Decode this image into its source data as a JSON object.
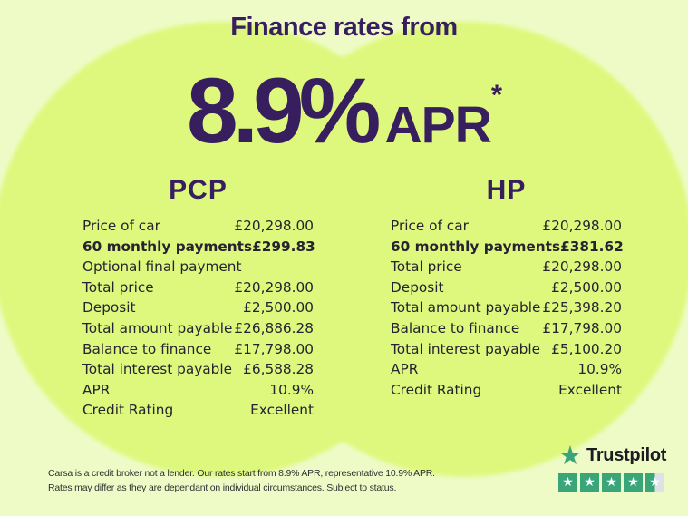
{
  "colors": {
    "background": "#effbc7",
    "circle": "#def87e",
    "heading_purple": "#371e5e",
    "table_text": "#262230",
    "trustpilot_green": "#3aa578",
    "trustpilot_gray": "#dfe0e8",
    "trustpilot_text": "#1b1b21"
  },
  "header": {
    "title": "Finance rates from",
    "rate": "8.9%",
    "apr_label": "APR",
    "apr_asterisk": "*"
  },
  "pcp": {
    "title": "PCP",
    "rows": [
      {
        "label": "Price of car",
        "value": "£20,298.00",
        "bold": false
      },
      {
        "label": "60 monthly payments",
        "value": "£299.83",
        "bold": true
      },
      {
        "label": "Optional final payment",
        "value": "",
        "bold": false
      },
      {
        "label": "Total price",
        "value": "£20,298.00",
        "bold": false
      },
      {
        "label": "Deposit",
        "value": "£2,500.00",
        "bold": false
      },
      {
        "label": "Total amount payable",
        "value": "£26,886.28",
        "bold": false
      },
      {
        "label": "Balance to finance",
        "value": "£17,798.00",
        "bold": false
      },
      {
        "label": "Total interest payable",
        "value": "£6,588.28",
        "bold": false
      },
      {
        "label": "APR",
        "value": "10.9%",
        "bold": false
      },
      {
        "label": "Credit Rating",
        "value": "Excellent",
        "bold": false
      }
    ]
  },
  "hp": {
    "title": "HP",
    "rows": [
      {
        "label": "Price of car",
        "value": "£20,298.00",
        "bold": false
      },
      {
        "label": "60 monthly payments",
        "value": "£381.62",
        "bold": true
      },
      {
        "label": "Total price",
        "value": "£20,298.00",
        "bold": false
      },
      {
        "label": "Deposit",
        "value": "£2,500.00",
        "bold": false
      },
      {
        "label": "Total amount payable",
        "value": "£25,398.20",
        "bold": false
      },
      {
        "label": "Balance to finance",
        "value": "£17,798.00",
        "bold": false
      },
      {
        "label": "Total interest payable",
        "value": "£5,100.20",
        "bold": false
      },
      {
        "label": "APR",
        "value": "10.9%",
        "bold": false
      },
      {
        "label": "Credit Rating",
        "value": "Excellent",
        "bold": false
      }
    ]
  },
  "disclaimer": {
    "line1": "Carsa is a credit broker not a lender. Our rates start from 8.9% APR, representative 10.9% APR.",
    "line2": "Rates may differ as they are dependant on individual circumstances. Subject to status."
  },
  "trustpilot": {
    "brand": "Trustpilot",
    "star_glyph": "★",
    "stars": [
      1,
      1,
      1,
      1,
      0.5
    ]
  }
}
